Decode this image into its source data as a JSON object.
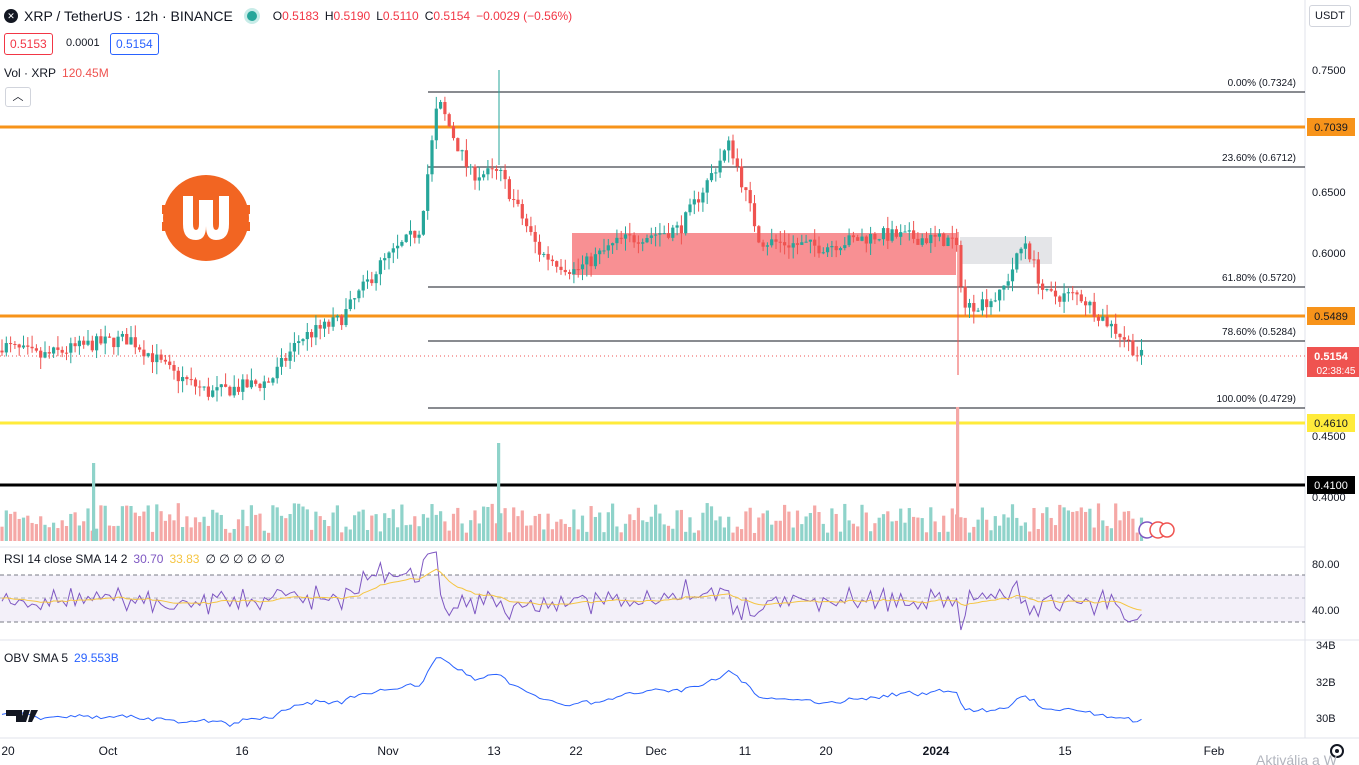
{
  "header": {
    "symbol": "XRP / TetherUS · 12h · BINANCE",
    "ohlc": {
      "o_label": "O",
      "o": "0.5183",
      "h_label": "H",
      "h": "0.5190",
      "l_label": "L",
      "l": "0.5110",
      "c_label": "C",
      "c": "0.5154",
      "change": "−0.0029 (−0.56%)"
    },
    "bid": "0.5153",
    "spread": "0.0001",
    "ask": "0.5154"
  },
  "volume_pane": {
    "label": "Vol · XRP",
    "value": "120.45M"
  },
  "rsi_pane": {
    "label": "RSI 14 close SMA 14 2",
    "rsi": "30.70",
    "sma": "33.83",
    "zeros": "∅ ∅ ∅ ∅ ∅ ∅"
  },
  "obv_pane": {
    "label": "OBV SMA 5",
    "value": "29.553B"
  },
  "currency_button": "USDT",
  "collapse_icon": "chevron-up-icon",
  "price_axis": [
    "0.7500",
    "0.6500",
    "0.6000",
    "0.4500",
    "0.4000"
  ],
  "rsi_axis": [
    "80.00",
    "40.00"
  ],
  "obv_axis": [
    "34B",
    "32B",
    "30B"
  ],
  "time_axis": [
    "20",
    "Oct",
    "16",
    "Nov",
    "13",
    "22",
    "Dec",
    "11",
    "20",
    "2024",
    "15",
    "Feb"
  ],
  "fib_levels": [
    {
      "pct": "0.00%",
      "price": "(0.7324)"
    },
    {
      "pct": "23.60%",
      "price": "(0.6712)"
    },
    {
      "pct": "61.80%",
      "price": "(0.5720)"
    },
    {
      "pct": "78.60%",
      "price": "(0.5284)"
    },
    {
      "pct": "100.00%",
      "price": "(0.4729)"
    }
  ],
  "horizontal_lines": [
    {
      "price": "0.7039",
      "color": "#f7931a"
    },
    {
      "price": "0.5489",
      "color": "#f7931a"
    },
    {
      "price": "0.4610",
      "color": "#ffeb3b"
    },
    {
      "price": "0.4100",
      "color": "#000000"
    }
  ],
  "last_price": {
    "value": "0.5154",
    "countdown": "02:38:45"
  },
  "watermark": "Aktiválja a W",
  "tv_logo": "tradingview-logo-icon",
  "settings_icon": "gear-icon",
  "colors": {
    "up": "#26a69a",
    "down": "#ef5350",
    "zone": "#f77c80",
    "orange": "#f7931a",
    "rsi": "#7e57c2",
    "obv": "#2962ff"
  }
}
